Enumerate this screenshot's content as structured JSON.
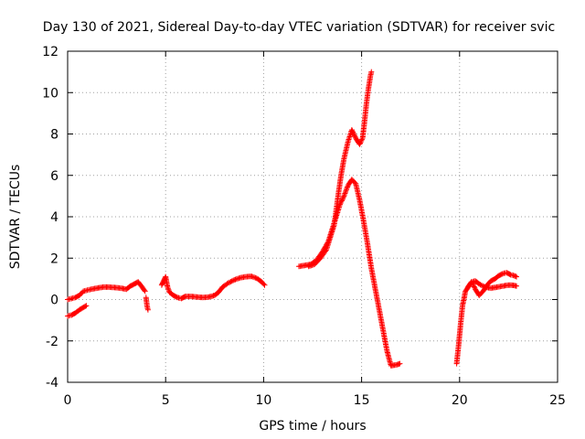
{
  "chart_data": {
    "type": "scatter",
    "title": "Day 130 of 2021, Sidereal Day-to-day VTEC variation (SDTVAR) for receiver svic",
    "xlabel": "GPS time / hours",
    "ylabel": "SDTVAR / TECUs",
    "xlim": [
      0,
      25
    ],
    "ylim": [
      -4,
      12
    ],
    "xticks": [
      0,
      5,
      10,
      15,
      20,
      25
    ],
    "yticks": [
      -4,
      -2,
      0,
      2,
      4,
      6,
      8,
      10,
      12
    ],
    "grid": true,
    "legend": "none",
    "marker": "plus",
    "color": "#ff0000",
    "series": [
      {
        "segments": [
          [
            [
              0.0,
              0.0
            ],
            [
              0.2,
              0.05
            ],
            [
              0.4,
              0.1
            ],
            [
              0.6,
              0.2
            ],
            [
              0.8,
              0.4
            ],
            [
              1.0,
              0.45
            ],
            [
              1.2,
              0.5
            ],
            [
              1.5,
              0.55
            ],
            [
              1.8,
              0.6
            ],
            [
              2.1,
              0.6
            ],
            [
              2.4,
              0.58
            ],
            [
              2.7,
              0.55
            ],
            [
              3.0,
              0.5
            ],
            [
              3.2,
              0.65
            ],
            [
              3.4,
              0.75
            ],
            [
              3.6,
              0.85
            ],
            [
              3.8,
              0.6
            ],
            [
              3.95,
              0.4
            ]
          ],
          [
            [
              0.0,
              -0.8
            ],
            [
              0.2,
              -0.75
            ],
            [
              0.4,
              -0.65
            ],
            [
              0.6,
              -0.5
            ],
            [
              0.8,
              -0.38
            ],
            [
              0.95,
              -0.3
            ]
          ],
          [
            [
              4.0,
              0.1
            ],
            [
              4.05,
              -0.3
            ],
            [
              4.1,
              -0.5
            ]
          ],
          [
            [
              4.8,
              0.7
            ],
            [
              4.9,
              0.9
            ],
            [
              5.0,
              1.1
            ],
            [
              5.1,
              0.6
            ],
            [
              5.2,
              0.35
            ],
            [
              5.4,
              0.2
            ],
            [
              5.6,
              0.1
            ],
            [
              5.8,
              0.05
            ],
            [
              6.0,
              0.15
            ],
            [
              6.3,
              0.15
            ],
            [
              6.6,
              0.12
            ],
            [
              6.9,
              0.1
            ],
            [
              7.2,
              0.12
            ],
            [
              7.5,
              0.2
            ],
            [
              7.7,
              0.35
            ],
            [
              7.9,
              0.6
            ],
            [
              8.2,
              0.8
            ],
            [
              8.5,
              0.95
            ],
            [
              8.8,
              1.05
            ],
            [
              9.1,
              1.1
            ],
            [
              9.4,
              1.12
            ],
            [
              9.7,
              1.0
            ],
            [
              9.9,
              0.85
            ],
            [
              10.05,
              0.7
            ]
          ],
          [
            [
              11.8,
              1.6
            ],
            [
              12.1,
              1.65
            ],
            [
              12.4,
              1.7
            ],
            [
              12.7,
              1.9
            ],
            [
              13.0,
              2.3
            ],
            [
              13.3,
              2.8
            ],
            [
              13.5,
              3.4
            ],
            [
              13.7,
              4.0
            ],
            [
              13.9,
              4.6
            ],
            [
              14.1,
              5.0
            ],
            [
              14.3,
              5.5
            ],
            [
              14.5,
              5.8
            ],
            [
              14.7,
              5.6
            ],
            [
              14.9,
              4.8
            ],
            [
              15.1,
              3.8
            ],
            [
              15.3,
              2.7
            ],
            [
              15.5,
              1.5
            ],
            [
              15.7,
              0.5
            ],
            [
              15.9,
              -0.5
            ],
            [
              16.1,
              -1.5
            ],
            [
              16.3,
              -2.5
            ],
            [
              16.5,
              -3.2
            ],
            [
              16.8,
              -3.15
            ],
            [
              16.95,
              -3.1
            ]
          ],
          [
            [
              12.3,
              1.6
            ],
            [
              12.6,
              1.7
            ],
            [
              12.9,
              2.0
            ],
            [
              13.2,
              2.4
            ],
            [
              13.4,
              3.0
            ],
            [
              13.6,
              3.6
            ],
            [
              13.8,
              5.0
            ],
            [
              13.95,
              6.0
            ],
            [
              14.1,
              6.8
            ],
            [
              14.3,
              7.6
            ],
            [
              14.5,
              8.2
            ],
            [
              14.7,
              7.8
            ],
            [
              14.9,
              7.5
            ],
            [
              15.05,
              7.8
            ],
            [
              15.15,
              8.6
            ],
            [
              15.25,
              9.5
            ],
            [
              15.35,
              10.2
            ],
            [
              15.45,
              10.8
            ],
            [
              15.5,
              11.0
            ]
          ],
          [
            [
              19.85,
              -3.1
            ],
            [
              19.95,
              -2.2
            ],
            [
              20.05,
              -1.2
            ],
            [
              20.15,
              -0.3
            ],
            [
              20.3,
              0.4
            ],
            [
              20.5,
              0.7
            ],
            [
              20.65,
              0.8
            ],
            [
              20.8,
              0.5
            ],
            [
              21.0,
              0.2
            ],
            [
              21.2,
              0.4
            ],
            [
              21.4,
              0.7
            ],
            [
              21.6,
              0.9
            ],
            [
              21.8,
              1.0
            ],
            [
              22.0,
              1.15
            ],
            [
              22.2,
              1.25
            ],
            [
              22.4,
              1.3
            ],
            [
              22.6,
              1.2
            ],
            [
              22.8,
              1.15
            ],
            [
              22.9,
              1.1
            ]
          ],
          [
            [
              20.4,
              0.55
            ],
            [
              20.6,
              0.85
            ],
            [
              20.8,
              0.9
            ],
            [
              21.0,
              0.75
            ],
            [
              21.3,
              0.6
            ],
            [
              21.6,
              0.55
            ],
            [
              21.9,
              0.6
            ],
            [
              22.2,
              0.65
            ],
            [
              22.5,
              0.7
            ],
            [
              22.8,
              0.68
            ],
            [
              22.9,
              0.65
            ]
          ]
        ]
      }
    ]
  }
}
